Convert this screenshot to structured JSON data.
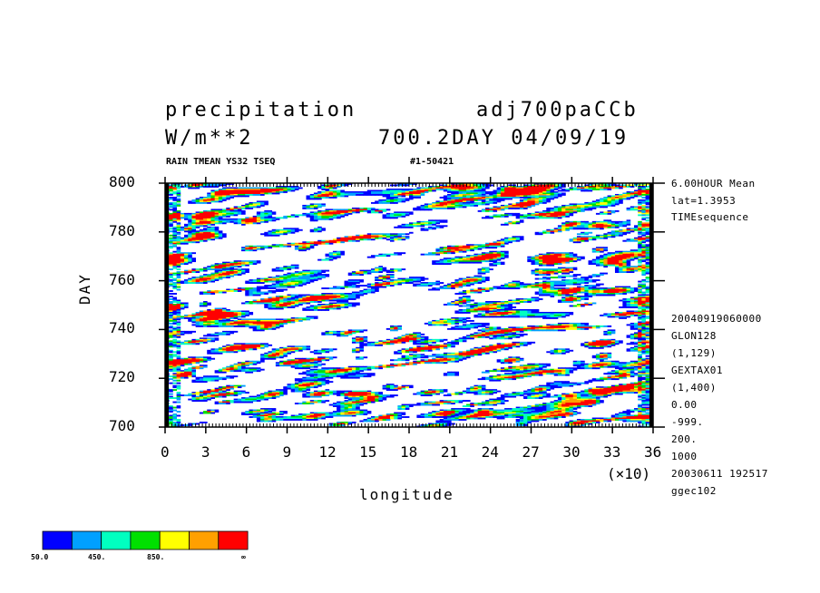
{
  "header": {
    "title_left": "precipitation",
    "title_right": "adj700paCCb",
    "units": "W/m**2",
    "subtitle_right": "700.2DAY 04/09/19",
    "small_left": "RAIN TMEAN YS32 TSEQ",
    "small_right": "#1-50421"
  },
  "side_info_top": [
    "6.00HOUR Mean",
    "lat=1.3953",
    "TIMEsequence"
  ],
  "side_info_bottom": [
    "20040919060000",
    "GLON128",
    "(1,129)",
    "GEXTAX01",
    "(1,400)",
    "0.00",
    "-999.",
    "200.",
    "1000",
    "20030611 192517",
    "ggec102"
  ],
  "colorbar": {
    "colors": [
      "#0000ff",
      "#00a0ff",
      "#00ffc0",
      "#00e000",
      "#ffff00",
      "#ffa000",
      "#ff0000"
    ],
    "labels": [
      "50.0",
      "450.",
      "850.",
      "∞"
    ]
  },
  "chart_data": {
    "type": "heatmap",
    "title": "precipitation",
    "xlabel": "longitude",
    "ylabel": "DAY",
    "x_multiplier": "(×10)",
    "xlim": [
      0,
      36
    ],
    "ylim": [
      700,
      800
    ],
    "x_ticks": [
      "0",
      "3",
      "6",
      "9",
      "12",
      "15",
      "18",
      "21",
      "24",
      "27",
      "30",
      "33",
      "36"
    ],
    "y_ticks": [
      "700",
      "720",
      "740",
      "760",
      "780",
      "800"
    ],
    "levels": [
      50,
      250,
      450,
      650,
      850,
      1050
    ],
    "colors": [
      "#0000ff",
      "#00a0ff",
      "#00ffc0",
      "#00e000",
      "#ffff00",
      "#ffa000",
      "#ff0000"
    ],
    "grid": false
  }
}
